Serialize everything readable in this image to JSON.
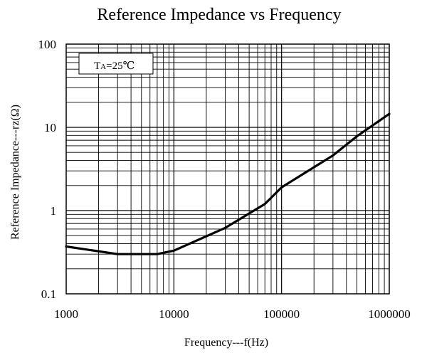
{
  "chart_data": {
    "type": "line",
    "title": "Reference Impedance vs Frequency",
    "xlabel": "Frequency---f(Hz)",
    "ylabel": "Reference Impedance---rz(Ω)",
    "xscale": "log",
    "yscale": "log",
    "xlim": [
      1000,
      1000000
    ],
    "ylim": [
      0.1,
      100
    ],
    "grid": true,
    "x_ticks": [
      "1000",
      "10000",
      "100000",
      "1000000"
    ],
    "y_ticks": [
      "100",
      "10",
      "1",
      "0.1"
    ],
    "annotation": {
      "prefix": "T",
      "subscript": "A",
      "suffix": "=25℃"
    },
    "series": [
      {
        "x": [
          1000,
          3000,
          7000,
          10000,
          30000,
          70000,
          100000,
          300000,
          500000,
          1000000
        ],
        "y": [
          0.37,
          0.3,
          0.3,
          0.33,
          0.62,
          1.2,
          1.9,
          4.6,
          7.8,
          14.5
        ]
      }
    ],
    "colors": {
      "line": "#000000",
      "grid": "#000000",
      "background": "#ffffff"
    }
  }
}
